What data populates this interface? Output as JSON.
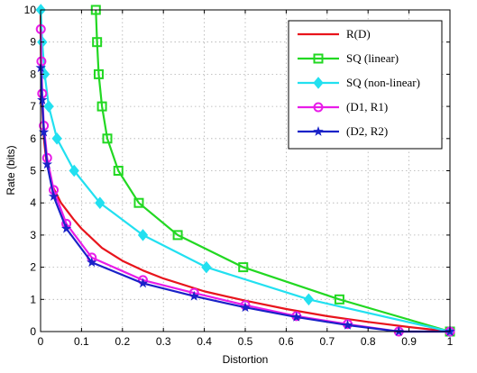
{
  "chart_data": {
    "type": "line",
    "title": "",
    "xlabel": "Distortion",
    "ylabel": "Rate (bits)",
    "xlim": [
      0,
      1
    ],
    "ylim": [
      0,
      10
    ],
    "xticks": [
      0,
      0.1,
      0.2,
      0.3,
      0.4,
      0.5,
      0.6,
      0.7,
      0.8,
      0.9,
      1
    ],
    "yticks": [
      0,
      1,
      2,
      3,
      4,
      5,
      6,
      7,
      8,
      9,
      10
    ],
    "xtick_labels": [
      "0",
      "0.1",
      "0.2",
      "0.3",
      "0.4",
      "0.5",
      "0.6",
      "0.7",
      "0.8",
      "0.9",
      "1"
    ],
    "ytick_labels": [
      "0",
      "1",
      "2",
      "3",
      "4",
      "5",
      "6",
      "7",
      "8",
      "9",
      "10"
    ],
    "grid": true,
    "legend_position": "top-right",
    "series": [
      {
        "name": "R(D)",
        "color": "#e8141c",
        "marker": "none",
        "points": [
          [
            0.0001,
            10
          ],
          [
            0.0005,
            9
          ],
          [
            0.0015,
            8
          ],
          [
            0.004,
            7
          ],
          [
            0.008,
            6
          ],
          [
            0.015,
            5.2
          ],
          [
            0.02,
            5
          ],
          [
            0.03,
            4.5
          ],
          [
            0.05,
            4
          ],
          [
            0.08,
            3.5
          ],
          [
            0.1,
            3.2
          ],
          [
            0.15,
            2.6
          ],
          [
            0.2,
            2.2
          ],
          [
            0.25,
            1.9
          ],
          [
            0.3,
            1.65
          ],
          [
            0.4,
            1.25
          ],
          [
            0.5,
            0.96
          ],
          [
            0.6,
            0.7
          ],
          [
            0.7,
            0.48
          ],
          [
            0.8,
            0.3
          ],
          [
            0.9,
            0.14
          ],
          [
            1.0,
            0
          ]
        ]
      },
      {
        "name": "SQ (linear)",
        "color": "#22d822",
        "marker": "square",
        "points": [
          [
            0.135,
            10
          ],
          [
            0.138,
            9
          ],
          [
            0.142,
            8
          ],
          [
            0.15,
            7
          ],
          [
            0.163,
            6
          ],
          [
            0.19,
            5
          ],
          [
            0.24,
            4
          ],
          [
            0.335,
            3
          ],
          [
            0.495,
            2
          ],
          [
            0.73,
            1
          ],
          [
            1.0,
            0
          ]
        ]
      },
      {
        "name": "SQ (non-linear)",
        "color": "#22e0f0",
        "marker": "diamond",
        "points": [
          [
            0.0005,
            10
          ],
          [
            0.004,
            9
          ],
          [
            0.01,
            8
          ],
          [
            0.02,
            7
          ],
          [
            0.04,
            6
          ],
          [
            0.082,
            5
          ],
          [
            0.145,
            4
          ],
          [
            0.25,
            3
          ],
          [
            0.405,
            2
          ],
          [
            0.655,
            1
          ],
          [
            1.0,
            0
          ]
        ]
      },
      {
        "name": "(D1, R1)",
        "color": "#e81ce8",
        "marker": "circle",
        "points": [
          [
            0.0005,
            9.4
          ],
          [
            0.002,
            8.4
          ],
          [
            0.004,
            7.4
          ],
          [
            0.008,
            6.4
          ],
          [
            0.016,
            5.4
          ],
          [
            0.032,
            4.4
          ],
          [
            0.063,
            3.35
          ],
          [
            0.125,
            2.3
          ],
          [
            0.25,
            1.6
          ],
          [
            0.375,
            1.2
          ],
          [
            0.5,
            0.82
          ],
          [
            0.625,
            0.48
          ],
          [
            0.75,
            0.23
          ],
          [
            0.875,
            0.0
          ],
          [
            1.0,
            0
          ]
        ]
      },
      {
        "name": "(D2, R2)",
        "color": "#1a22c8",
        "marker": "star",
        "points": [
          [
            0.0005,
            8.2
          ],
          [
            0.004,
            7.2
          ],
          [
            0.008,
            6.2
          ],
          [
            0.016,
            5.2
          ],
          [
            0.032,
            4.2
          ],
          [
            0.063,
            3.2
          ],
          [
            0.125,
            2.15
          ],
          [
            0.25,
            1.5
          ],
          [
            0.375,
            1.1
          ],
          [
            0.5,
            0.75
          ],
          [
            0.625,
            0.45
          ],
          [
            0.75,
            0.2
          ],
          [
            0.875,
            0.0
          ],
          [
            1.0,
            0
          ]
        ]
      }
    ]
  }
}
